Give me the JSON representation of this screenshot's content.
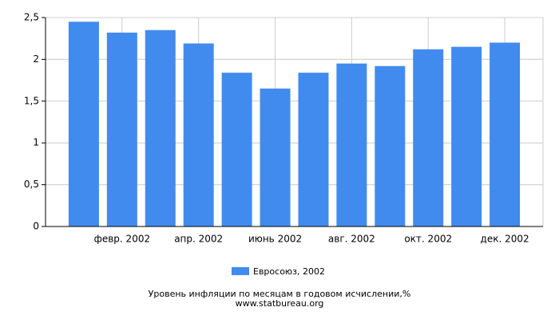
{
  "chart_data": {
    "type": "bar",
    "title": "Уровень инфляции по месяцам в годовом исчислении,%",
    "subtitle": "www.statbureau.org",
    "categories": [
      null,
      "февр. 2002",
      null,
      "апр. 2002",
      null,
      "июнь 2002",
      null,
      "авг. 2002",
      null,
      "окт. 2002",
      null,
      "дек. 2002"
    ],
    "series": [
      {
        "name": "Евросоюз, 2002",
        "color": "#428bee",
        "values": [
          2.45,
          2.32,
          2.35,
          2.19,
          1.84,
          1.65,
          1.84,
          1.95,
          1.92,
          2.12,
          2.15,
          2.2
        ]
      }
    ],
    "ylim": [
      0,
      2.5
    ],
    "yticks": [
      0,
      {
        "value": 0.5,
        "label": "0,5"
      },
      1,
      {
        "value": 1.5,
        "label": "1,5"
      },
      2,
      {
        "value": 2.5,
        "label": "2,5"
      }
    ],
    "grid": true
  }
}
